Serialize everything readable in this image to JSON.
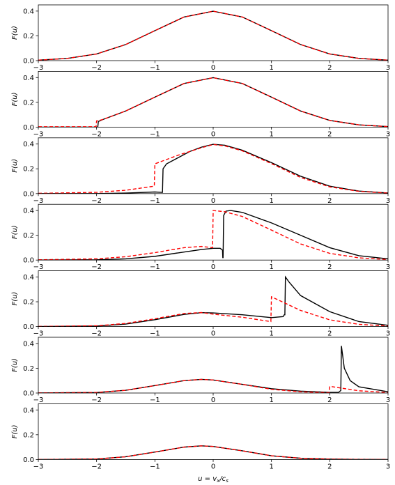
{
  "figure": {
    "xlabel": "u = v",
    "xlabel_sub1": "x",
    "xlabel_mid": "/c",
    "xlabel_sub2": "s",
    "ylabel": "F(u)"
  },
  "chart_data": {
    "type": "line",
    "xlim": [
      -3,
      3
    ],
    "ylim": [
      0,
      0.45
    ],
    "xticks": [
      -3,
      -2,
      -1,
      0,
      1,
      2,
      3
    ],
    "xtick_labels": [
      "−3",
      "−2",
      "−1",
      "0",
      "1",
      "2",
      "3"
    ],
    "yticks": [
      0.0,
      0.2,
      0.4
    ],
    "ytick_labels": [
      "0.0",
      "0.2",
      "0.4"
    ],
    "colors": {
      "solid": "#000000",
      "dashed": "#ff0000"
    },
    "panels": [
      {
        "solid": [
          [
            -3,
            0.004
          ],
          [
            -2.5,
            0.018
          ],
          [
            -2,
            0.054
          ],
          [
            -1.5,
            0.13
          ],
          [
            -1,
            0.242
          ],
          [
            -0.5,
            0.352
          ],
          [
            0,
            0.399
          ],
          [
            0.5,
            0.352
          ],
          [
            1,
            0.242
          ],
          [
            1.5,
            0.13
          ],
          [
            2,
            0.054
          ],
          [
            2.5,
            0.018
          ],
          [
            3,
            0.004
          ]
        ],
        "dashed": [
          [
            -3,
            0.004
          ],
          [
            -2.5,
            0.018
          ],
          [
            -2,
            0.054
          ],
          [
            -1.5,
            0.13
          ],
          [
            -1,
            0.242
          ],
          [
            -0.5,
            0.352
          ],
          [
            0,
            0.399
          ],
          [
            0.5,
            0.352
          ],
          [
            1,
            0.242
          ],
          [
            1.5,
            0.13
          ],
          [
            2,
            0.054
          ],
          [
            2.5,
            0.018
          ],
          [
            3,
            0.004
          ]
        ]
      },
      {
        "solid": [
          [
            -3,
            0
          ],
          [
            -1.98,
            0
          ],
          [
            -1.97,
            0.045
          ],
          [
            -1.9,
            0.06
          ],
          [
            -1.5,
            0.13
          ],
          [
            -1,
            0.242
          ],
          [
            -0.5,
            0.352
          ],
          [
            0,
            0.399
          ],
          [
            0.5,
            0.352
          ],
          [
            1,
            0.242
          ],
          [
            1.5,
            0.13
          ],
          [
            2,
            0.054
          ],
          [
            2.5,
            0.018
          ],
          [
            3,
            0.004
          ]
        ],
        "dashed": [
          [
            -3,
            0.003
          ],
          [
            -2.01,
            0.003
          ],
          [
            -2,
            0.05
          ],
          [
            -1.9,
            0.06
          ],
          [
            -1.5,
            0.13
          ],
          [
            -1,
            0.242
          ],
          [
            -0.5,
            0.352
          ],
          [
            0,
            0.399
          ],
          [
            0.5,
            0.352
          ],
          [
            1,
            0.242
          ],
          [
            1.5,
            0.13
          ],
          [
            2,
            0.054
          ],
          [
            2.5,
            0.018
          ],
          [
            3,
            0.004
          ]
        ]
      },
      {
        "solid": [
          [
            -3,
            0
          ],
          [
            -2,
            0
          ],
          [
            -1.5,
            0.004
          ],
          [
            -1,
            0.013
          ],
          [
            -0.88,
            0.01
          ],
          [
            -0.87,
            0.01
          ],
          [
            -0.86,
            0.2
          ],
          [
            -0.8,
            0.24
          ],
          [
            -0.6,
            0.29
          ],
          [
            -0.4,
            0.34
          ],
          [
            -0.2,
            0.375
          ],
          [
            0,
            0.398
          ],
          [
            0.2,
            0.39
          ],
          [
            0.5,
            0.35
          ],
          [
            1,
            0.25
          ],
          [
            1.5,
            0.14
          ],
          [
            2,
            0.06
          ],
          [
            2.5,
            0.02
          ],
          [
            3,
            0.005
          ]
        ],
        "dashed": [
          [
            -3,
            0.002
          ],
          [
            -2,
            0.01
          ],
          [
            -1.5,
            0.027
          ],
          [
            -1.01,
            0.06
          ],
          [
            -1,
            0.24
          ],
          [
            -0.6,
            0.31
          ],
          [
            -0.2,
            0.37
          ],
          [
            0,
            0.396
          ],
          [
            0.2,
            0.385
          ],
          [
            0.5,
            0.345
          ],
          [
            1,
            0.242
          ],
          [
            1.5,
            0.13
          ],
          [
            2,
            0.054
          ],
          [
            2.5,
            0.018
          ],
          [
            3,
            0.004
          ]
        ]
      },
      {
        "solid": [
          [
            -3,
            0
          ],
          [
            -2,
            0.002
          ],
          [
            -1.5,
            0.01
          ],
          [
            -1,
            0.03
          ],
          [
            -0.5,
            0.065
          ],
          [
            -0.2,
            0.085
          ],
          [
            0,
            0.095
          ],
          [
            0.12,
            0.095
          ],
          [
            0.16,
            0.08
          ],
          [
            0.165,
            0.02
          ],
          [
            0.17,
            0.02
          ],
          [
            0.18,
            0.36
          ],
          [
            0.22,
            0.395
          ],
          [
            0.3,
            0.4
          ],
          [
            0.5,
            0.385
          ],
          [
            1,
            0.3
          ],
          [
            1.5,
            0.2
          ],
          [
            2,
            0.1
          ],
          [
            2.5,
            0.035
          ],
          [
            3,
            0.01
          ]
        ],
        "dashed": [
          [
            -3,
            0.002
          ],
          [
            -2,
            0.01
          ],
          [
            -1.5,
            0.027
          ],
          [
            -1,
            0.06
          ],
          [
            -0.5,
            0.1
          ],
          [
            -0.2,
            0.11
          ],
          [
            -0.01,
            0.1
          ],
          [
            0,
            0.4
          ],
          [
            0.2,
            0.39
          ],
          [
            0.5,
            0.352
          ],
          [
            1,
            0.242
          ],
          [
            1.5,
            0.13
          ],
          [
            2,
            0.054
          ],
          [
            2.5,
            0.018
          ],
          [
            3,
            0.004
          ]
        ]
      },
      {
        "solid": [
          [
            -3,
            0
          ],
          [
            -2,
            0.004
          ],
          [
            -1.5,
            0.02
          ],
          [
            -1,
            0.055
          ],
          [
            -0.5,
            0.098
          ],
          [
            -0.2,
            0.112
          ],
          [
            0,
            0.11
          ],
          [
            0.5,
            0.095
          ],
          [
            1,
            0.072
          ],
          [
            1.2,
            0.08
          ],
          [
            1.22,
            0.095
          ],
          [
            1.23,
            0.095
          ],
          [
            1.24,
            0.4
          ],
          [
            1.3,
            0.36
          ],
          [
            1.5,
            0.25
          ],
          [
            2,
            0.12
          ],
          [
            2.5,
            0.04
          ],
          [
            3,
            0.01
          ]
        ],
        "dashed": [
          [
            -3,
            0.001
          ],
          [
            -2,
            0.006
          ],
          [
            -1.5,
            0.025
          ],
          [
            -1,
            0.063
          ],
          [
            -0.5,
            0.105
          ],
          [
            -0.2,
            0.113
          ],
          [
            0,
            0.1
          ],
          [
            0.5,
            0.075
          ],
          [
            0.99,
            0.04
          ],
          [
            1,
            0.24
          ],
          [
            1.5,
            0.13
          ],
          [
            2,
            0.054
          ],
          [
            2.5,
            0.018
          ],
          [
            3,
            0.004
          ]
        ]
      },
      {
        "solid": [
          [
            -3,
            0
          ],
          [
            -2,
            0.004
          ],
          [
            -1.5,
            0.022
          ],
          [
            -1,
            0.06
          ],
          [
            -0.5,
            0.1
          ],
          [
            -0.2,
            0.11
          ],
          [
            0,
            0.105
          ],
          [
            0.5,
            0.07
          ],
          [
            1,
            0.035
          ],
          [
            1.5,
            0.015
          ],
          [
            2,
            0.005
          ],
          [
            2.15,
            0.005
          ],
          [
            2.19,
            0.02
          ],
          [
            2.2,
            0.38
          ],
          [
            2.25,
            0.2
          ],
          [
            2.35,
            0.1
          ],
          [
            2.5,
            0.05
          ],
          [
            3,
            0.01
          ]
        ],
        "dashed": [
          [
            -3,
            0.001
          ],
          [
            -2,
            0.005
          ],
          [
            -1.5,
            0.022
          ],
          [
            -1,
            0.06
          ],
          [
            -0.5,
            0.1
          ],
          [
            -0.2,
            0.11
          ],
          [
            0,
            0.105
          ],
          [
            0.5,
            0.07
          ],
          [
            1,
            0.03
          ],
          [
            1.5,
            0.01
          ],
          [
            1.99,
            0.003
          ],
          [
            2,
            0.054
          ],
          [
            2.5,
            0.018
          ],
          [
            3,
            0.004
          ]
        ]
      },
      {
        "solid": [
          [
            -3,
            0
          ],
          [
            -2,
            0.004
          ],
          [
            -1.5,
            0.022
          ],
          [
            -1,
            0.06
          ],
          [
            -0.5,
            0.1
          ],
          [
            -0.2,
            0.11
          ],
          [
            0,
            0.105
          ],
          [
            0.5,
            0.07
          ],
          [
            1,
            0.03
          ],
          [
            1.5,
            0.01
          ],
          [
            2,
            0.003
          ],
          [
            2.5,
            0.001
          ],
          [
            3,
            0
          ]
        ],
        "dashed": [
          [
            -3,
            0
          ],
          [
            -2,
            0.004
          ],
          [
            -1.5,
            0.022
          ],
          [
            -1,
            0.06
          ],
          [
            -0.5,
            0.1
          ],
          [
            -0.2,
            0.11
          ],
          [
            0,
            0.105
          ],
          [
            0.5,
            0.07
          ],
          [
            1,
            0.03
          ],
          [
            1.5,
            0.01
          ],
          [
            2,
            0.003
          ],
          [
            2.5,
            0.001
          ],
          [
            3,
            0
          ]
        ]
      }
    ]
  }
}
